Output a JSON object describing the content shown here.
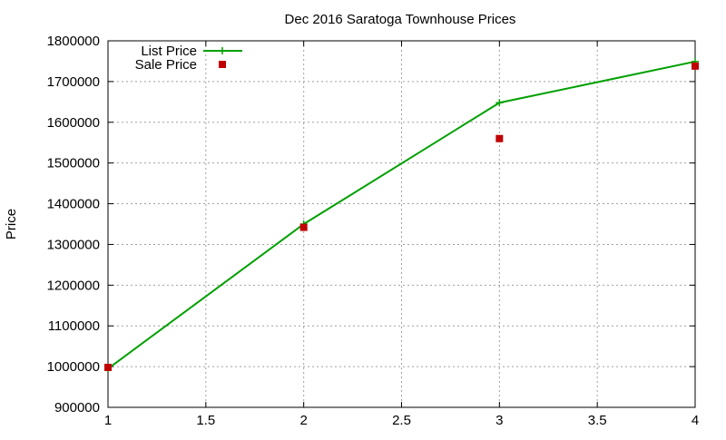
{
  "chart_data": {
    "type": "line",
    "title": "Dec 2016 Saratoga Townhouse Prices",
    "xlabel": "",
    "ylabel": "Price",
    "xlim": [
      1,
      4
    ],
    "ylim": [
      900000,
      1800000
    ],
    "x_ticks": [
      "1",
      "1.5",
      "2",
      "2.5",
      "3",
      "3.5",
      "4"
    ],
    "y_ticks": [
      "900000",
      "1000000",
      "1100000",
      "1200000",
      "1300000",
      "1400000",
      "1500000",
      "1600000",
      "1700000",
      "1800000"
    ],
    "grid": true,
    "legend_position": "top-left",
    "series": [
      {
        "name": "List Price",
        "style": "line-with-plus-markers",
        "color": "#00a000",
        "x": [
          1,
          2,
          3,
          4
        ],
        "y": [
          995000,
          1350000,
          1648000,
          1749000
        ]
      },
      {
        "name": "Sale Price",
        "style": "square-markers",
        "color": "#c00000",
        "x": [
          1,
          2,
          3,
          4
        ],
        "y": [
          998000,
          1342000,
          1560000,
          1738000
        ]
      }
    ]
  }
}
